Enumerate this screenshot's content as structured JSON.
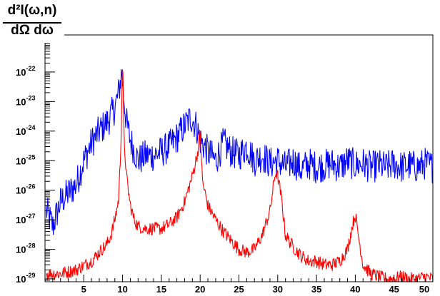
{
  "chart_data": {
    "type": "line",
    "title": "",
    "xlabel": "",
    "ylabel_numerator": "d²I(ω,n)",
    "ylabel_denominator": "dΩ dω",
    "xlim": [
      0,
      50
    ],
    "ylim": [
      1e-29,
      1e-21
    ],
    "yscale": "log",
    "grid": false,
    "x_ticks": [
      5,
      10,
      15,
      20,
      25,
      30,
      35,
      40,
      45,
      50
    ],
    "x_tick_labels": [
      "5",
      "10",
      "15",
      "20",
      "25",
      "30",
      "35",
      "40",
      "45",
      "50"
    ],
    "y_ticks": [
      {
        "base": "10",
        "exp": "-29",
        "value": 1e-29
      },
      {
        "base": "10",
        "exp": "-28",
        "value": 1e-28
      },
      {
        "base": "10",
        "exp": "-27",
        "value": 1e-27
      },
      {
        "base": "10",
        "exp": "-26",
        "value": 1e-26
      },
      {
        "base": "10",
        "exp": "-25",
        "value": 1e-25
      },
      {
        "base": "10",
        "exp": "-24",
        "value": 1e-24
      },
      {
        "base": "10",
        "exp": "-23",
        "value": 1e-23
      },
      {
        "base": "10",
        "exp": "-22",
        "value": 1e-22
      }
    ],
    "series": [
      {
        "color": "#0000ff",
        "x": [
          0.2,
          1,
          2,
          3,
          4,
          5,
          6,
          7,
          8,
          9,
          9.5,
          9.9,
          10.1,
          10.5,
          11,
          12,
          13,
          14,
          15,
          16,
          17,
          18,
          18.8,
          19.5,
          20,
          21,
          22,
          23,
          24,
          25,
          26,
          27,
          28,
          29,
          30,
          31,
          32,
          33,
          34,
          35,
          36,
          37,
          38,
          39,
          40,
          41,
          42,
          43,
          44,
          45,
          46,
          47,
          48,
          49,
          50
        ],
        "y": [
          2e-27,
          6e-28,
          4e-27,
          8e-27,
          1.5e-26,
          1e-25,
          4e-25,
          1e-24,
          2e-24,
          6e-24,
          2e-23,
          1e-22,
          2e-23,
          2e-24,
          5e-25,
          1e-25,
          1.5e-25,
          1.5e-25,
          2e-25,
          3e-25,
          6e-25,
          1.5e-24,
          3e-24,
          1.5e-24,
          5e-25,
          2e-25,
          1e-25,
          4e-25,
          2e-25,
          1.5e-25,
          3e-25,
          1e-25,
          1.5e-25,
          8e-26,
          1e-25,
          6e-26,
          1e-25,
          5e-26,
          8e-26,
          6e-26,
          7e-26,
          8e-26,
          6e-26,
          1e-25,
          7e-26,
          8e-26,
          6e-26,
          7e-26,
          6e-26,
          8e-26,
          6e-26,
          7e-26,
          6e-26,
          8e-26,
          6e-26
        ]
      },
      {
        "color": "#ff0000",
        "x": [
          0.2,
          2,
          4,
          6,
          7,
          8,
          8.5,
          9,
          9.5,
          9.8,
          10,
          10.2,
          10.5,
          11,
          11.5,
          12,
          13,
          14,
          15,
          16,
          17,
          18,
          19,
          19.7,
          20,
          20.3,
          21,
          22,
          23,
          24,
          25,
          26,
          27,
          28,
          29,
          29.7,
          30,
          30.5,
          31,
          32,
          33,
          34,
          35,
          36,
          37,
          38,
          39,
          39.6,
          40,
          40.5,
          41,
          42,
          43,
          44,
          45,
          46,
          47,
          48,
          49,
          50
        ],
        "y": [
          1.5e-29,
          1.5e-29,
          2e-29,
          4e-29,
          8e-29,
          1.5e-28,
          3e-28,
          1e-27,
          5e-27,
          5e-25,
          3e-22,
          5e-25,
          3e-26,
          3e-27,
          1e-27,
          6e-28,
          5e-28,
          5e-28,
          5e-28,
          7e-28,
          1.2e-27,
          4e-27,
          3e-26,
          2e-25,
          1e-24,
          2e-26,
          3e-27,
          1e-27,
          4e-28,
          2e-28,
          1e-28,
          8e-29,
          1e-28,
          3e-28,
          2e-27,
          4e-26,
          3e-26,
          5e-27,
          3e-28,
          1.2e-28,
          6e-29,
          4e-29,
          4e-29,
          3e-29,
          3e-29,
          4e-29,
          1e-28,
          6e-28,
          1.5e-27,
          2e-28,
          3e-29,
          1.5e-29,
          1.2e-29,
          1e-29,
          1e-29,
          1.2e-29,
          1e-29,
          1e-29,
          1.2e-29,
          1e-29
        ]
      }
    ]
  }
}
